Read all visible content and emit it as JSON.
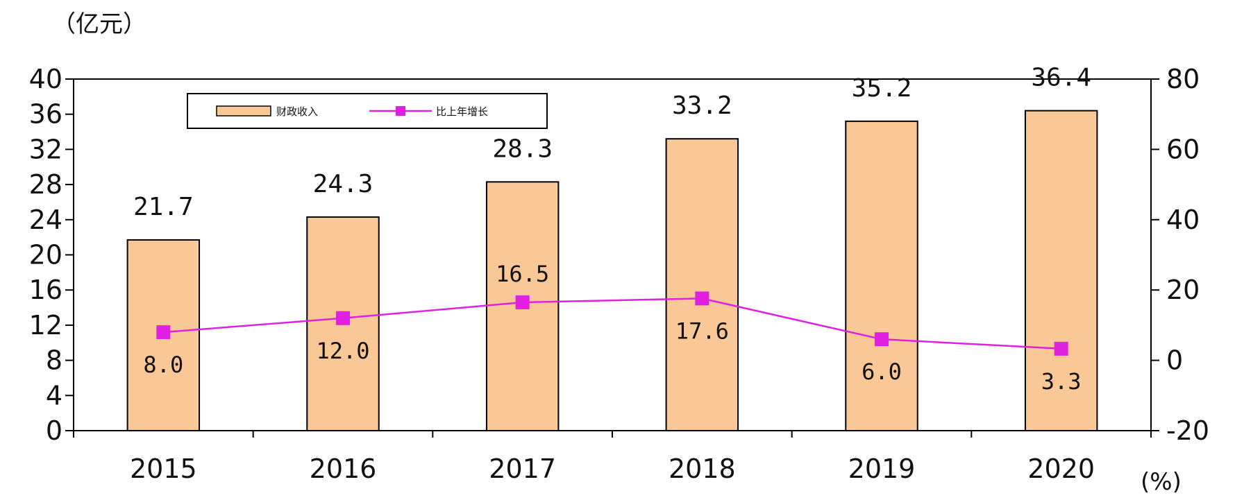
{
  "chart_data": {
    "type": "bar",
    "categories": [
      "2015",
      "2016",
      "2017",
      "2018",
      "2019",
      "2020"
    ],
    "series": [
      {
        "name": "财政收入",
        "type": "bar",
        "axis": "left",
        "values": [
          21.7,
          24.3,
          28.3,
          33.2,
          35.2,
          36.4
        ],
        "color": "#FAC896"
      },
      {
        "name": "比上年增长",
        "type": "line",
        "axis": "right",
        "values": [
          8.0,
          12.0,
          16.5,
          17.6,
          6.0,
          3.3
        ],
        "color": "#E020E0"
      }
    ],
    "bar_labels": [
      "21.7",
      "24.3",
      "28.3",
      "33.2",
      "35.2",
      "36.4"
    ],
    "line_labels": [
      "8.0",
      "12.0",
      "16.5",
      "17.6",
      "6.0",
      "3.3"
    ],
    "left_unit": "（亿元）",
    "right_unit": "(%)",
    "ylim_left": [
      0,
      40
    ],
    "yticks_left": [
      "0",
      "4",
      "8",
      "12",
      "16",
      "20",
      "24",
      "28",
      "32",
      "36",
      "40"
    ],
    "ylim_right": [
      -20,
      80
    ],
    "yticks_right": [
      "-20",
      "0",
      "20",
      "40",
      "60",
      "80"
    ],
    "grid": false,
    "legend_position": "top-left"
  }
}
